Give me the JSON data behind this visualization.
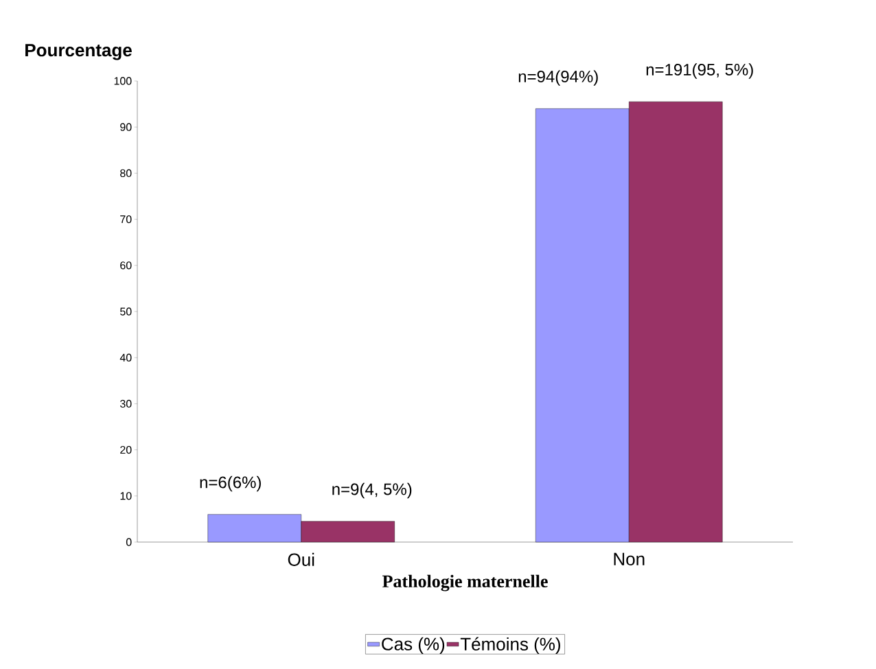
{
  "chart_data": {
    "type": "bar",
    "xlabel": "Pathologie maternelle",
    "ylabel": "Pourcentage",
    "categories": [
      "Oui",
      "Non"
    ],
    "series": [
      {
        "name": "Cas (%)",
        "color": "#9999ff",
        "values": [
          6,
          94
        ],
        "value_labels": [
          "n=6(6%)",
          "n=94(94%)"
        ]
      },
      {
        "name": "Témoins (%)",
        "color": "#993366",
        "values": [
          4.5,
          95.5
        ],
        "value_labels": [
          "n=9(4, 5%)",
          "n=191(95, 5%)"
        ]
      }
    ],
    "ylim": [
      0,
      100
    ],
    "yticks": [
      0,
      10,
      20,
      30,
      40,
      50,
      60,
      70,
      80,
      90,
      100
    ],
    "grid": false,
    "legend": "bottom"
  }
}
